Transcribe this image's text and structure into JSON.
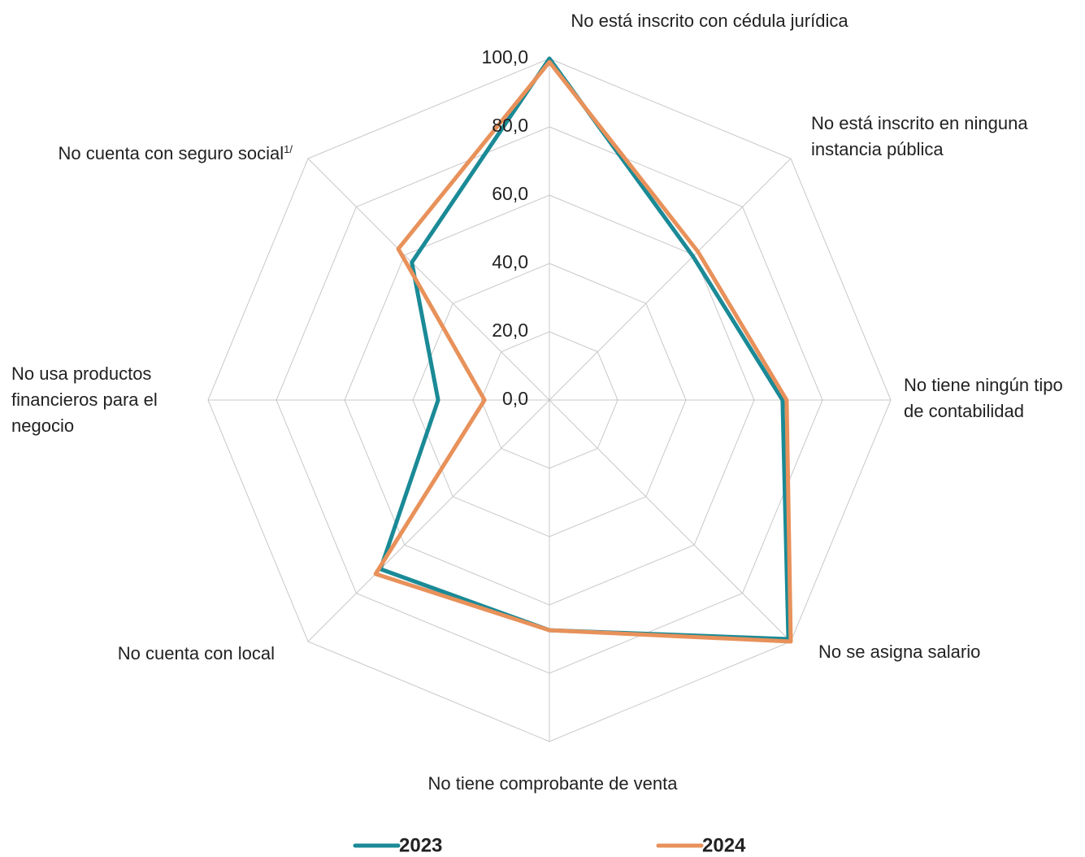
{
  "chart_data": {
    "type": "radar",
    "categories": [
      "No está inscrito con cédula jurídica",
      "No está inscrito en ninguna instancia pública",
      "No tiene ningún tipo de contabilidad",
      "No se asigna salario",
      "No tiene comprobante de venta",
      "No cuenta con local",
      "No usa productos financieros para el negocio",
      "No cuenta con seguro social"
    ],
    "annotations": [
      "1/"
    ],
    "series": [
      {
        "name": "2023",
        "color": "#1a8a96",
        "values": [
          100,
          59.5,
          68.3,
          99,
          67.4,
          70,
          32.6,
          57
        ]
      },
      {
        "name": "2024",
        "color": "#e8915a",
        "values": [
          99,
          61.5,
          69.5,
          100,
          67.4,
          72,
          19,
          62.6
        ]
      }
    ],
    "ylim": [
      0,
      100
    ],
    "yticks": [
      {
        "value": 0,
        "label": "0,0"
      },
      {
        "value": 20,
        "label": "20,0"
      },
      {
        "value": 40,
        "label": "40,0"
      },
      {
        "value": 60,
        "label": "60,0"
      },
      {
        "value": 80,
        "label": "80,0"
      },
      {
        "value": 100,
        "label": "100,0"
      }
    ],
    "grid": true,
    "legend": "bottom"
  }
}
